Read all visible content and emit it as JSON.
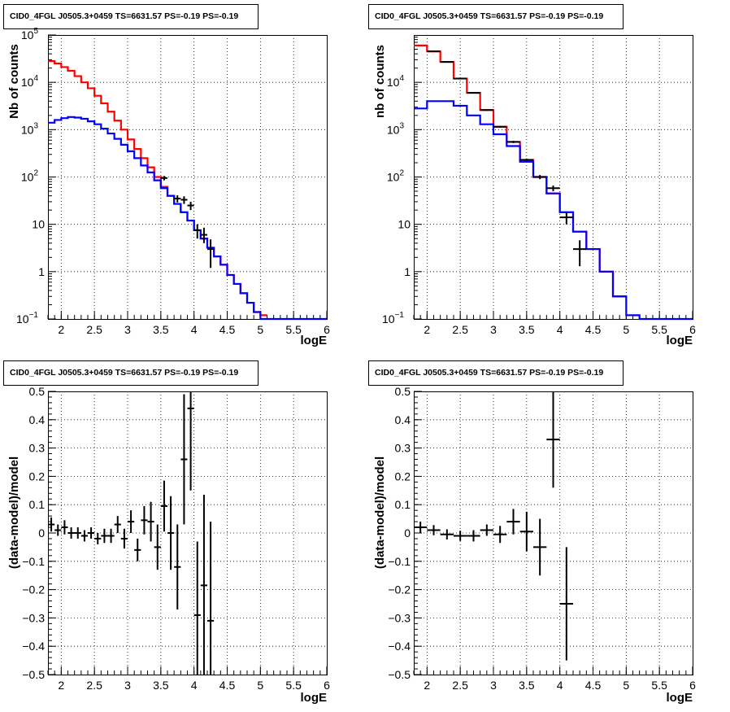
{
  "chart_data": [
    {
      "type": "line",
      "title": "CID0_4FGL J0505.3+0459 TS=6631.57 PS=-0.19 PS=-0.19",
      "xlabel": "logE",
      "ylabel": "Nb of counts",
      "xlim": [
        1.8,
        6
      ],
      "ylim": [
        0.1,
        100000
      ],
      "log_y": true,
      "grid": true,
      "x_ticks": [
        "2",
        "2.5",
        "3",
        "3.5",
        "4",
        "4.5",
        "5",
        "5.5",
        "6"
      ],
      "y_ticks": [
        {
          "value": 0.1,
          "label": "10",
          "exp": "−1"
        },
        {
          "value": 1,
          "label": "1",
          "exp": ""
        },
        {
          "value": 10,
          "label": "10",
          "exp": ""
        },
        {
          "value": 100,
          "label": "10",
          "exp": "2"
        },
        {
          "value": 1000,
          "label": "10",
          "exp": "3"
        },
        {
          "value": 10000,
          "label": "10",
          "exp": "4"
        },
        {
          "value": 100000,
          "label": "10",
          "exp": "5"
        }
      ],
      "series": [
        {
          "color": "#ff0000",
          "style": "step",
          "edges": [
            1.8,
            1.9,
            2.0,
            2.1,
            2.2,
            2.3,
            2.4,
            2.5,
            2.6,
            2.7,
            2.8,
            2.9,
            3.0,
            3.1,
            3.2,
            3.3,
            3.4,
            3.5,
            3.6,
            3.7,
            3.8,
            3.9,
            4.0,
            4.1,
            4.2,
            4.3,
            4.4,
            4.5,
            4.6,
            4.7,
            4.8,
            4.9,
            5.0,
            5.1
          ],
          "values": [
            28000,
            25000,
            21000,
            17500,
            13500,
            10000,
            7500,
            5200,
            3600,
            2400,
            1550,
            1000,
            620,
            390,
            250,
            160,
            100,
            62,
            40,
            27,
            18,
            12,
            7.5,
            5,
            3.2,
            2.1,
            1.4,
            0.85,
            0.55,
            0.35,
            0.22,
            0.14,
            0.12
          ]
        },
        {
          "color": "#0000ff",
          "style": "step",
          "edges": [
            1.8,
            1.9,
            2.0,
            2.1,
            2.2,
            2.3,
            2.4,
            2.5,
            2.6,
            2.7,
            2.8,
            2.9,
            3.0,
            3.1,
            3.2,
            3.3,
            3.4,
            3.5,
            3.6,
            3.7,
            3.8,
            3.9,
            4.0,
            4.1,
            4.2,
            4.3,
            4.4,
            4.5,
            4.6,
            4.7,
            4.8,
            4.9,
            5.0,
            5.1,
            5.2,
            5.3,
            5.4,
            5.5,
            5.6,
            5.7,
            5.8,
            5.9,
            6.0
          ],
          "values": [
            1400,
            1600,
            1750,
            1850,
            1800,
            1700,
            1500,
            1300,
            1050,
            830,
            640,
            480,
            350,
            250,
            175,
            125,
            85,
            58,
            40,
            27,
            18,
            12,
            7.5,
            5,
            3.2,
            2.1,
            1.4,
            0.85,
            0.55,
            0.35,
            0.22,
            0.14,
            0.1,
            0.1,
            0.1,
            0.1,
            0.1,
            0.1,
            0.1,
            0.1,
            0.1,
            0.1
          ]
        }
      ],
      "points": [
        {
          "x": 3.55,
          "y": 95,
          "xerr": 0.05,
          "ylo": 85,
          "yhi": 105
        },
        {
          "x": 3.75,
          "y": 35,
          "xerr": 0.05,
          "ylo": 29,
          "yhi": 41
        },
        {
          "x": 3.85,
          "y": 33,
          "xerr": 0.05,
          "ylo": 27,
          "yhi": 39
        },
        {
          "x": 3.95,
          "y": 25,
          "xerr": 0.05,
          "ylo": 20,
          "yhi": 30
        },
        {
          "x": 4.05,
          "y": 7.5,
          "xerr": 0.05,
          "ylo": 5,
          "yhi": 10
        },
        {
          "x": 4.15,
          "y": 6,
          "xerr": 0.05,
          "ylo": 4,
          "yhi": 8.5
        },
        {
          "x": 4.25,
          "y": 3,
          "xerr": 0.05,
          "ylo": 1.2,
          "yhi": 4.8
        }
      ]
    },
    {
      "type": "line",
      "title": "CID0_4FGL J0505.3+0459 TS=6631.57 PS=-0.19 PS=-0.19",
      "xlabel": "logE",
      "ylabel": "nb of counts",
      "xlim": [
        1.8,
        6
      ],
      "ylim": [
        0.1,
        100000
      ],
      "log_y": true,
      "grid": true,
      "x_ticks": [
        "2",
        "2.5",
        "3",
        "3.5",
        "4",
        "4.5",
        "5",
        "5.5",
        "6"
      ],
      "y_ticks": [
        {
          "value": 0.1,
          "label": "10",
          "exp": "−1"
        },
        {
          "value": 1,
          "label": "1",
          "exp": ""
        },
        {
          "value": 10,
          "label": "10",
          "exp": ""
        },
        {
          "value": 100,
          "label": "10",
          "exp": "2"
        },
        {
          "value": 1000,
          "label": "10",
          "exp": "3"
        },
        {
          "value": 10000,
          "label": "10",
          "exp": "4"
        }
      ],
      "series": [
        {
          "color": "#ff0000",
          "style": "step",
          "edges": [
            1.8,
            2.0,
            2.2,
            2.4,
            2.6,
            2.8,
            3.0,
            3.2,
            3.4,
            3.6,
            3.8,
            4.0,
            4.2,
            4.4,
            4.6,
            4.8,
            5.0
          ],
          "values": [
            60000,
            45000,
            27000,
            12000,
            6000,
            2600,
            1150,
            550,
            230,
            100,
            45,
            18,
            7,
            3,
            1,
            0.3
          ]
        },
        {
          "color": "#0000ff",
          "style": "step",
          "edges": [
            1.8,
            2.0,
            2.2,
            2.4,
            2.6,
            2.8,
            3.0,
            3.2,
            3.4,
            3.6,
            3.8,
            4.0,
            4.2,
            4.4,
            4.6,
            4.8,
            5.0,
            5.2,
            5.4,
            5.6,
            5.8,
            6.0
          ],
          "values": [
            2800,
            4000,
            4000,
            3200,
            2000,
            1300,
            800,
            450,
            210,
            100,
            45,
            18,
            7,
            3,
            1,
            0.3,
            0.12,
            0.1,
            0.1,
            0.1,
            0.1
          ]
        }
      ],
      "points": [
        {
          "x": 2.1,
          "y": 45000,
          "xerr": 0.1,
          "ylo": 44000,
          "yhi": 46000
        },
        {
          "x": 2.3,
          "y": 27000,
          "xerr": 0.1,
          "ylo": 26500,
          "yhi": 27500
        },
        {
          "x": 2.5,
          "y": 12000,
          "xerr": 0.1,
          "ylo": 11700,
          "yhi": 12300
        },
        {
          "x": 2.7,
          "y": 6000,
          "xerr": 0.1,
          "ylo": 5800,
          "yhi": 6200
        },
        {
          "x": 2.9,
          "y": 2600,
          "xerr": 0.1,
          "ylo": 2500,
          "yhi": 2700
        },
        {
          "x": 3.1,
          "y": 1150,
          "xerr": 0.1,
          "ylo": 1100,
          "yhi": 1200
        },
        {
          "x": 3.3,
          "y": 550,
          "xerr": 0.1,
          "ylo": 520,
          "yhi": 580
        },
        {
          "x": 3.5,
          "y": 230,
          "xerr": 0.1,
          "ylo": 215,
          "yhi": 245
        },
        {
          "x": 3.7,
          "y": 100,
          "xerr": 0.1,
          "ylo": 90,
          "yhi": 110
        },
        {
          "x": 3.9,
          "y": 58,
          "xerr": 0.1,
          "ylo": 50,
          "yhi": 66
        },
        {
          "x": 4.1,
          "y": 14,
          "xerr": 0.1,
          "ylo": 10,
          "yhi": 18
        },
        {
          "x": 4.3,
          "y": 3,
          "xerr": 0.1,
          "ylo": 1.3,
          "yhi": 4.6
        }
      ]
    },
    {
      "type": "scatter",
      "title": "CID0_4FGL J0505.3+0459 TS=6631.57 PS=-0.19 PS=-0.19",
      "xlabel": "logE",
      "ylabel": "(data-model)/model",
      "xlim": [
        1.8,
        6
      ],
      "ylim": [
        -0.5,
        0.5
      ],
      "log_y": false,
      "grid": true,
      "x_ticks": [
        "2",
        "2.5",
        "3",
        "3.5",
        "4",
        "4.5",
        "5",
        "5.5",
        "6"
      ],
      "y_ticks": [
        "0.5",
        "0.4",
        "0.3",
        "0.2",
        "0.1",
        "0",
        "−0.1",
        "−0.2",
        "−0.3",
        "−0.4",
        "−0.5"
      ],
      "points": [
        {
          "x": 1.85,
          "y": 0.03,
          "xerr": 0.05,
          "yerr": 0.025
        },
        {
          "x": 1.95,
          "y": 0.01,
          "xerr": 0.05,
          "yerr": 0.02
        },
        {
          "x": 2.05,
          "y": 0.02,
          "xerr": 0.05,
          "yerr": 0.025
        },
        {
          "x": 2.15,
          "y": 0.0,
          "xerr": 0.05,
          "yerr": 0.02
        },
        {
          "x": 2.25,
          "y": 0.0,
          "xerr": 0.05,
          "yerr": 0.02
        },
        {
          "x": 2.35,
          "y": -0.01,
          "xerr": 0.05,
          "yerr": 0.02
        },
        {
          "x": 2.45,
          "y": 0.0,
          "xerr": 0.05,
          "yerr": 0.02
        },
        {
          "x": 2.55,
          "y": -0.02,
          "xerr": 0.05,
          "yerr": 0.02
        },
        {
          "x": 2.65,
          "y": -0.01,
          "xerr": 0.05,
          "yerr": 0.025
        },
        {
          "x": 2.75,
          "y": -0.01,
          "xerr": 0.05,
          "yerr": 0.025
        },
        {
          "x": 2.85,
          "y": 0.03,
          "xerr": 0.05,
          "yerr": 0.03
        },
        {
          "x": 2.95,
          "y": -0.02,
          "xerr": 0.05,
          "yerr": 0.035
        },
        {
          "x": 3.05,
          "y": 0.04,
          "xerr": 0.05,
          "yerr": 0.04
        },
        {
          "x": 3.15,
          "y": -0.06,
          "xerr": 0.05,
          "yerr": 0.04
        },
        {
          "x": 3.25,
          "y": 0.045,
          "xerr": 0.05,
          "yerr": 0.05
        },
        {
          "x": 3.35,
          "y": 0.04,
          "xerr": 0.05,
          "yerr": 0.07
        },
        {
          "x": 3.45,
          "y": -0.05,
          "xerr": 0.05,
          "yerr": 0.08
        },
        {
          "x": 3.55,
          "y": 0.095,
          "xerr": 0.05,
          "yerr": 0.09
        },
        {
          "x": 3.65,
          "y": 0.0,
          "xerr": 0.05,
          "yerr": 0.13
        },
        {
          "x": 3.75,
          "y": -0.12,
          "xerr": 0.05,
          "yerr": 0.15
        },
        {
          "x": 3.85,
          "y": 0.26,
          "xerr": 0.05,
          "yerr": 0.23
        },
        {
          "x": 3.95,
          "y": 0.44,
          "xerr": 0.05,
          "yerr": 0.29
        },
        {
          "x": 4.05,
          "y": -0.29,
          "xerr": 0.05,
          "yerr": 0.26
        },
        {
          "x": 4.15,
          "y": -0.185,
          "xerr": 0.05,
          "yerr": 0.32
        },
        {
          "x": 4.25,
          "y": -0.31,
          "xerr": 0.05,
          "yerr": 0.35
        }
      ]
    },
    {
      "type": "scatter",
      "title": "CID0_4FGL J0505.3+0459 TS=6631.57 PS=-0.19 PS=-0.19",
      "xlabel": "logE",
      "ylabel": "(data-model)/model",
      "xlim": [
        1.8,
        6
      ],
      "ylim": [
        -0.5,
        0.5
      ],
      "log_y": false,
      "grid": true,
      "x_ticks": [
        "2",
        "2.5",
        "3",
        "3.5",
        "4",
        "4.5",
        "5",
        "5.5",
        "6"
      ],
      "y_ticks": [
        "0.5",
        "0.4",
        "0.3",
        "0.2",
        "0.1",
        "0",
        "−0.1",
        "−0.2",
        "−0.3",
        "−0.4",
        "−0.5"
      ],
      "points": [
        {
          "x": 1.9,
          "y": 0.02,
          "xerr": 0.1,
          "yerr": 0.02
        },
        {
          "x": 2.1,
          "y": 0.01,
          "xerr": 0.1,
          "yerr": 0.018
        },
        {
          "x": 2.3,
          "y": -0.005,
          "xerr": 0.1,
          "yerr": 0.018
        },
        {
          "x": 2.5,
          "y": -0.01,
          "xerr": 0.1,
          "yerr": 0.018
        },
        {
          "x": 2.7,
          "y": -0.01,
          "xerr": 0.1,
          "yerr": 0.02
        },
        {
          "x": 2.9,
          "y": 0.01,
          "xerr": 0.1,
          "yerr": 0.02
        },
        {
          "x": 3.1,
          "y": -0.005,
          "xerr": 0.1,
          "yerr": 0.03
        },
        {
          "x": 3.3,
          "y": 0.04,
          "xerr": 0.1,
          "yerr": 0.045
        },
        {
          "x": 3.5,
          "y": 0.005,
          "xerr": 0.1,
          "yerr": 0.07
        },
        {
          "x": 3.7,
          "y": -0.05,
          "xerr": 0.1,
          "yerr": 0.1
        },
        {
          "x": 3.9,
          "y": 0.33,
          "xerr": 0.1,
          "yerr": 0.17
        },
        {
          "x": 4.1,
          "y": -0.25,
          "xerr": 0.1,
          "yerr": 0.2
        }
      ]
    }
  ]
}
